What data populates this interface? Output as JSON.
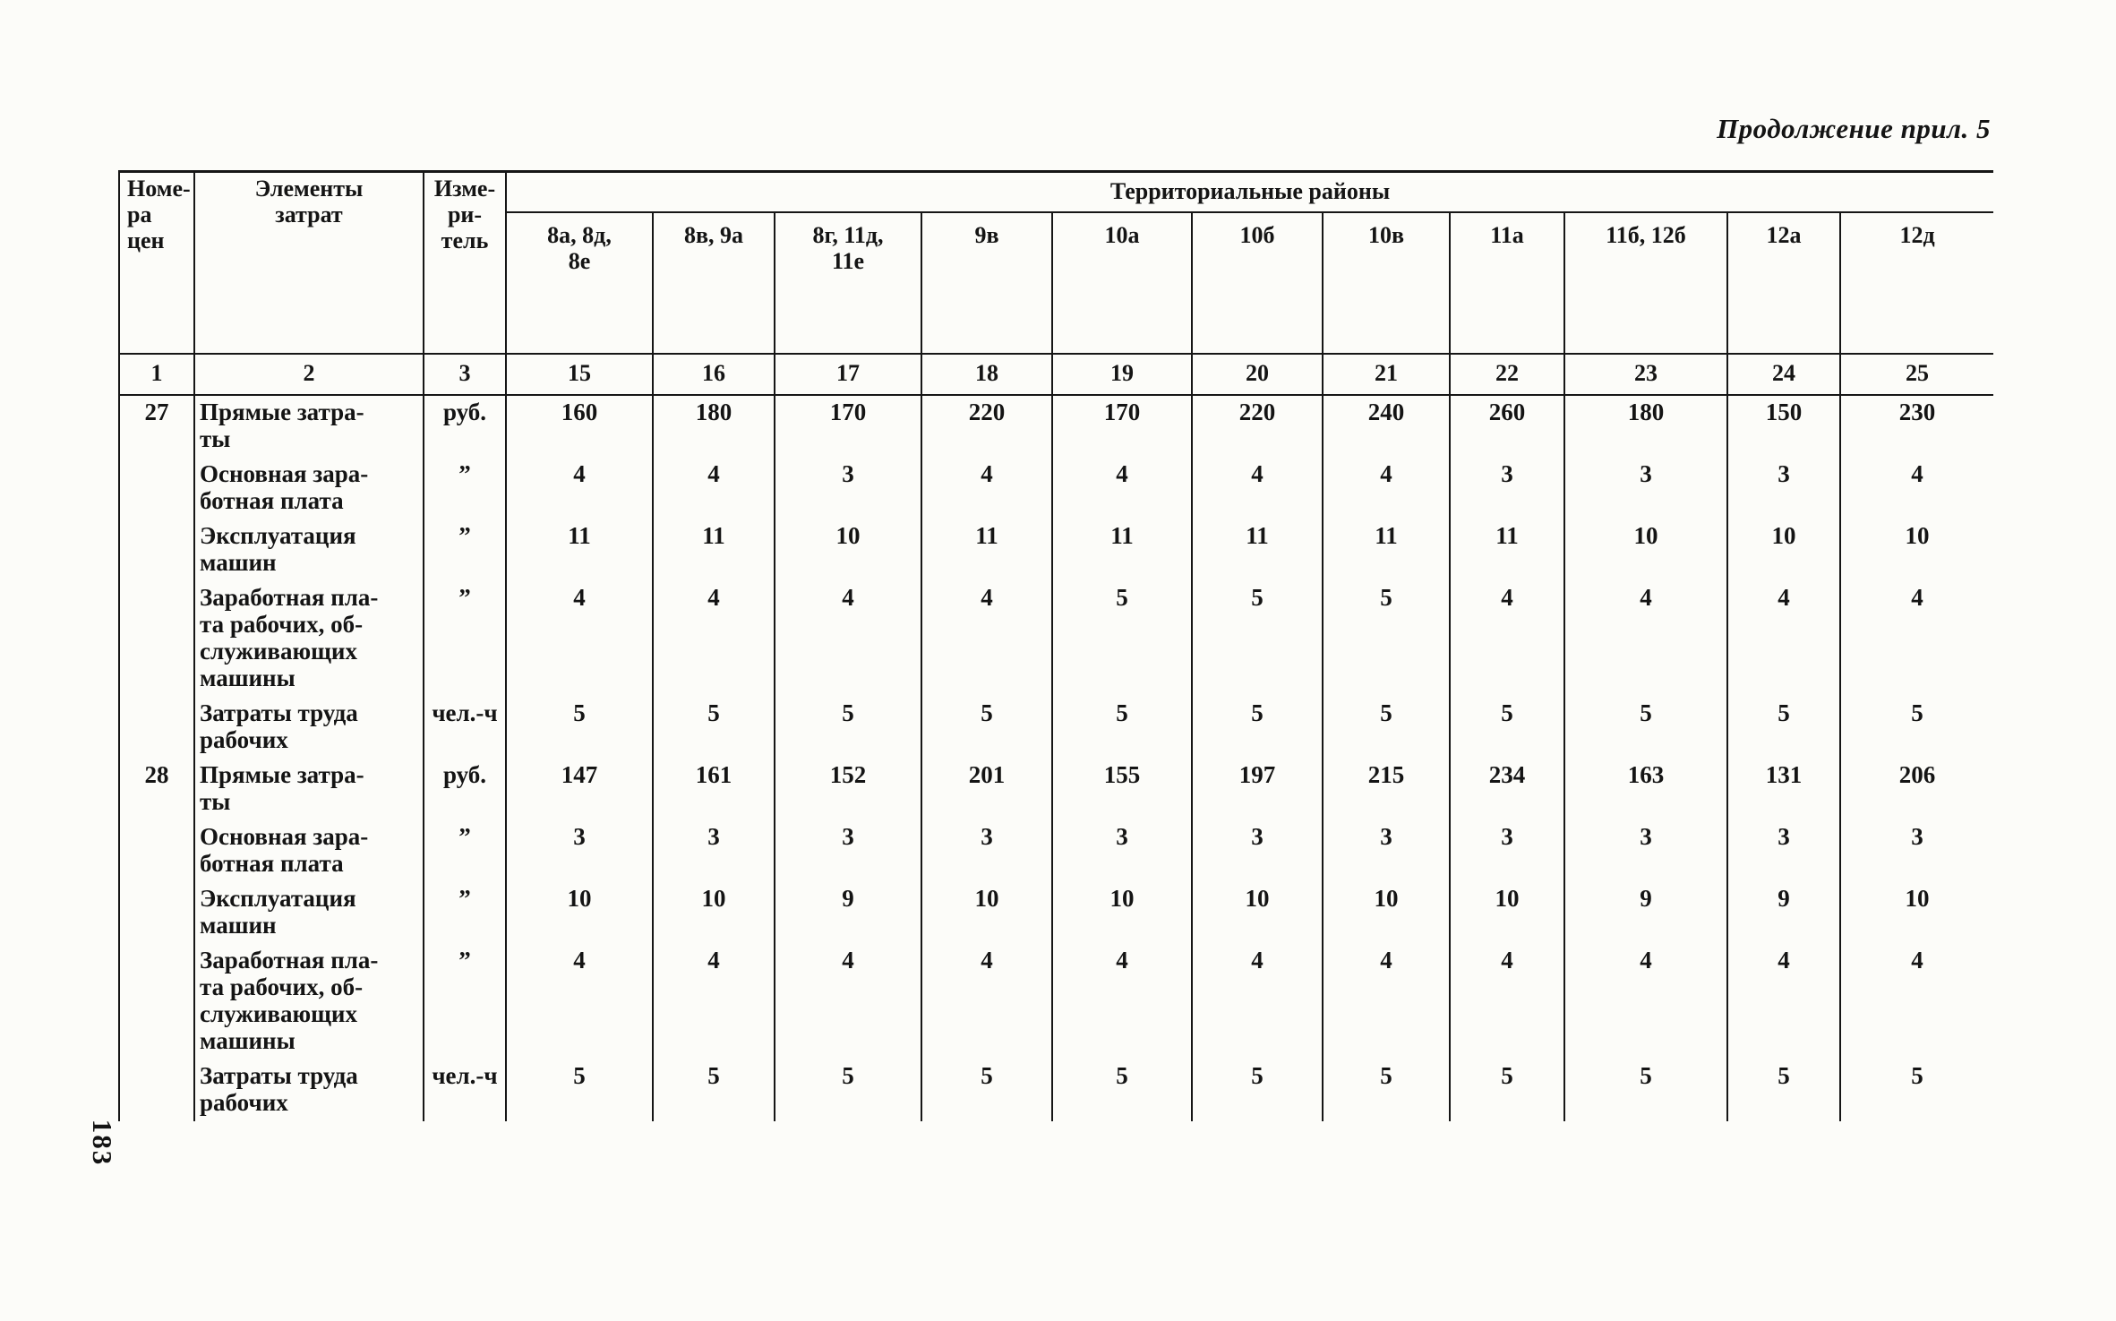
{
  "page": {
    "header_note": "Продолжение прил. 5",
    "page_number": "183"
  },
  "table": {
    "head": {
      "col1": "Номе-\nра\nцен",
      "col2": "Элементы\nзатрат",
      "col3": "Изме-\nри-\nтель",
      "districts_title": "Территориальные районы",
      "district_cols": [
        "8а,  8д,\n8е",
        "8в, 9а",
        "8г, 11д,\n11е",
        "9в",
        "10а",
        "10б",
        "10в",
        "11а",
        "11б, 12б",
        "12а",
        "12д"
      ]
    },
    "col_numbers": [
      "1",
      "2",
      "3",
      "15",
      "16",
      "17",
      "18",
      "19",
      "20",
      "21",
      "22",
      "23",
      "24",
      "25"
    ],
    "groups": [
      {
        "number": "27",
        "rows": [
          {
            "label": "Прямые затра-\nты",
            "unit": "руб.",
            "values": [
              "160",
              "180",
              "170",
              "220",
              "170",
              "220",
              "240",
              "260",
              "180",
              "150",
              "230"
            ]
          },
          {
            "label": "Основная зара-\nботная плата",
            "unit": "”",
            "values": [
              "4",
              "4",
              "3",
              "4",
              "4",
              "4",
              "4",
              "3",
              "3",
              "3",
              "4"
            ]
          },
          {
            "label": "Эксплуатация\nмашин",
            "unit": "”",
            "values": [
              "11",
              "11",
              "10",
              "11",
              "11",
              "11",
              "11",
              "11",
              "10",
              "10",
              "10"
            ]
          },
          {
            "label": "Заработная пла-\nта рабочих, об-\nслуживающих\nмашины",
            "unit": "”",
            "values": [
              "4",
              "4",
              "4",
              "4",
              "5",
              "5",
              "5",
              "4",
              "4",
              "4",
              "4"
            ]
          },
          {
            "label": "Затраты труда\nрабочих",
            "unit": "чел.-ч",
            "values": [
              "5",
              "5",
              "5",
              "5",
              "5",
              "5",
              "5",
              "5",
              "5",
              "5",
              "5"
            ]
          }
        ]
      },
      {
        "number": "28",
        "rows": [
          {
            "label": "Прямые затра-\nты",
            "unit": "руб.",
            "values": [
              "147",
              "161",
              "152",
              "201",
              "155",
              "197",
              "215",
              "234",
              "163",
              "131",
              "206"
            ]
          },
          {
            "label": "Основная зара-\nботная плата",
            "unit": "”",
            "values": [
              "3",
              "3",
              "3",
              "3",
              "3",
              "3",
              "3",
              "3",
              "3",
              "3",
              "3"
            ]
          },
          {
            "label": "Эксплуатация\nмашин",
            "unit": "”",
            "values": [
              "10",
              "10",
              "9",
              "10",
              "10",
              "10",
              "10",
              "10",
              "9",
              "9",
              "10"
            ]
          },
          {
            "label": "Заработная пла-\nта рабочих, об-\nслуживающих\nмашины",
            "unit": "”",
            "values": [
              "4",
              "4",
              "4",
              "4",
              "4",
              "4",
              "4",
              "4",
              "4",
              "4",
              "4"
            ]
          },
          {
            "label": "Затраты труда\nрабочих",
            "unit": "чел.-ч",
            "values": [
              "5",
              "5",
              "5",
              "5",
              "5",
              "5",
              "5",
              "5",
              "5",
              "5",
              "5"
            ]
          }
        ]
      }
    ]
  }
}
